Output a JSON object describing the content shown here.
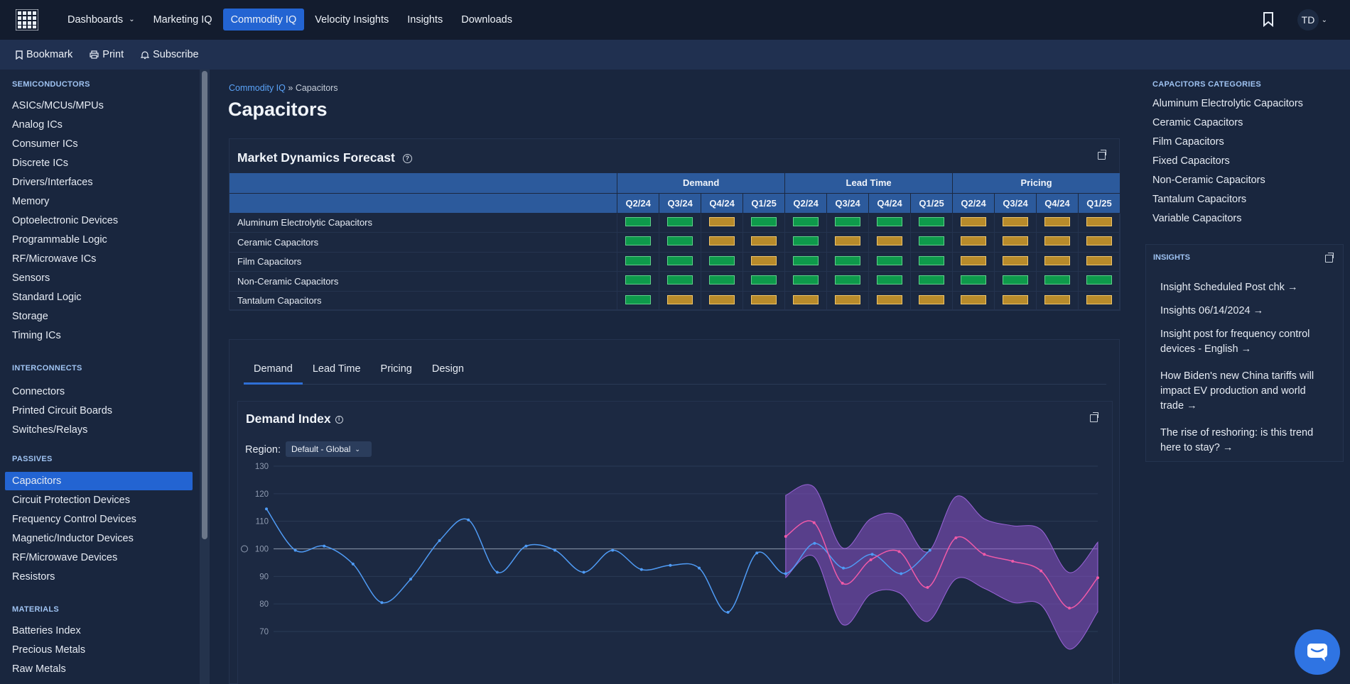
{
  "topnav": {
    "items": [
      {
        "label": "Dashboards"
      },
      {
        "label": "Marketing IQ"
      },
      {
        "label": "Commodity IQ"
      },
      {
        "label": "Velocity Insights"
      },
      {
        "label": "Insights"
      },
      {
        "label": "Downloads"
      }
    ],
    "active_index": 2,
    "user_initials": "TD"
  },
  "subbar": {
    "bookmark": "Bookmark",
    "print": "Print",
    "subscribe": "Subscribe"
  },
  "sidebar": {
    "sections": [
      {
        "title": "SEMICONDUCTORS",
        "items": [
          "ASICs/MCUs/MPUs",
          "Analog ICs",
          "Consumer ICs",
          "Discrete ICs",
          "Drivers/Interfaces",
          "Memory",
          "Optoelectronic Devices",
          "Programmable Logic",
          "RF/Microwave ICs",
          "Sensors",
          "Standard Logic",
          "Storage",
          "Timing ICs"
        ]
      },
      {
        "title": "INTERCONNECTS",
        "items": [
          "Connectors",
          "Printed Circuit Boards",
          "Switches/Relays"
        ]
      },
      {
        "title": "PASSIVES",
        "items": [
          "Capacitors",
          "Circuit Protection Devices",
          "Frequency Control Devices",
          "Magnetic/Inductor Devices",
          "RF/Microwave Devices",
          "Resistors"
        ]
      },
      {
        "title": "MATERIALS",
        "items": [
          "Batteries Index",
          "Precious Metals",
          "Raw Metals"
        ]
      }
    ],
    "active_item": "Capacitors"
  },
  "breadcrumb": {
    "parent": "Commodity IQ",
    "sep": "»",
    "current": "Capacitors"
  },
  "page_title": "Capacitors",
  "forecast": {
    "title": "Market Dynamics Forecast",
    "groups": [
      "Demand",
      "Lead Time",
      "Pricing"
    ],
    "quarters": [
      "Q2/24",
      "Q3/24",
      "Q4/24",
      "Q1/25"
    ],
    "rows": [
      {
        "name": "Aluminum Electrolytic Capacitors",
        "cells": [
          "g",
          "g",
          "a",
          "g",
          "g",
          "g",
          "g",
          "g",
          "a",
          "a",
          "a",
          "a"
        ]
      },
      {
        "name": "Ceramic Capacitors",
        "cells": [
          "g",
          "g",
          "a",
          "a",
          "g",
          "a",
          "a",
          "g",
          "a",
          "a",
          "a",
          "a"
        ]
      },
      {
        "name": "Film Capacitors",
        "cells": [
          "g",
          "g",
          "g",
          "a",
          "g",
          "g",
          "g",
          "g",
          "a",
          "a",
          "a",
          "a"
        ]
      },
      {
        "name": "Non-Ceramic Capacitors",
        "cells": [
          "g",
          "g",
          "g",
          "g",
          "g",
          "g",
          "g",
          "g",
          "g",
          "g",
          "g",
          "g"
        ]
      },
      {
        "name": "Tantalum Capacitors",
        "cells": [
          "g",
          "a",
          "a",
          "a",
          "a",
          "a",
          "a",
          "a",
          "a",
          "a",
          "a",
          "a"
        ]
      }
    ],
    "colors": {
      "green": "#0e9a4b",
      "amber": "#b88b2b"
    }
  },
  "tabs": [
    "Demand",
    "Lead Time",
    "Pricing",
    "Design"
  ],
  "active_tab": "Demand",
  "demand_index": {
    "title": "Demand Index",
    "region_label": "Region:",
    "region_value": "Default - Global"
  },
  "chart_data": {
    "type": "line",
    "title": "Demand Index",
    "ylim": [
      70,
      130
    ],
    "yticks": [
      130,
      120,
      110,
      100,
      90,
      80,
      70
    ],
    "baseline": 100,
    "series": [
      {
        "values": [
          114.5,
          99.5,
          101,
          94.5,
          80.5,
          89,
          103,
          110.5,
          91.5,
          101,
          99.5,
          91.5,
          99.5,
          92.5,
          94,
          93,
          77,
          98.5,
          91,
          102,
          93,
          98,
          91,
          99.5
        ],
        "color": "#4f9bf5"
      },
      {
        "values": [
          104.5,
          109.5,
          87.5,
          96,
          99,
          86,
          104,
          98,
          95.5,
          92,
          78.5,
          89.5
        ],
        "color": "#f05aa8"
      }
    ],
    "band_color": "#8a52c8"
  },
  "right_panel": {
    "categories_title": "CAPACITORS CATEGORIES",
    "categories": [
      "Aluminum Electrolytic Capacitors",
      "Ceramic Capacitors",
      "Film Capacitors",
      "Fixed Capacitors",
      "Non-Ceramic Capacitors",
      "Tantalum Capacitors",
      "Variable Capacitors"
    ],
    "insights_title": "INSIGHTS",
    "insights": [
      "Insight Scheduled Post chk →",
      "Insights 06/14/2024 →",
      "Insight post for frequency control devices - English →",
      "How Biden's new China tariffs will impact EV production and world trade →",
      "The rise of reshoring: is this trend here to stay? →"
    ]
  }
}
